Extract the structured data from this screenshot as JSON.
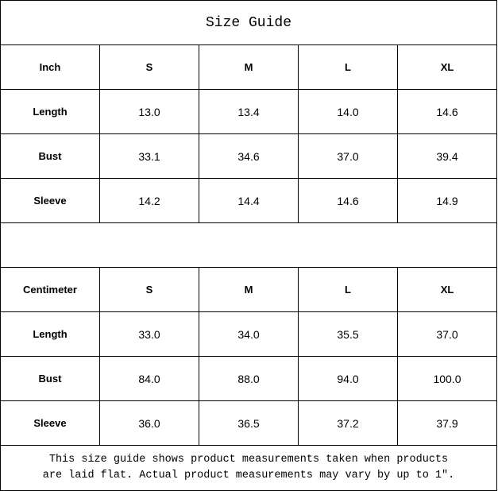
{
  "title": "Size Guide",
  "sizes": [
    "S",
    "M",
    "L",
    "XL"
  ],
  "inch": {
    "header": "Inch",
    "rows": [
      {
        "label": "Length",
        "values": [
          "13.0",
          "13.4",
          "14.0",
          "14.6"
        ]
      },
      {
        "label": "Bust",
        "values": [
          "33.1",
          "34.6",
          "37.0",
          "39.4"
        ]
      },
      {
        "label": "Sleeve",
        "values": [
          "14.2",
          "14.4",
          "14.6",
          "14.9"
        ]
      }
    ]
  },
  "cm": {
    "header": "Centimeter",
    "rows": [
      {
        "label": "Length",
        "values": [
          "33.0",
          "34.0",
          "35.5",
          "37.0"
        ]
      },
      {
        "label": "Bust",
        "values": [
          "84.0",
          "88.0",
          "94.0",
          "100.0"
        ]
      },
      {
        "label": "Sleeve",
        "values": [
          "36.0",
          "36.5",
          "37.2",
          "37.9"
        ]
      }
    ]
  },
  "footer": {
    "line1": "This size guide shows product measurements taken when products",
    "line2": "are laid flat. Actual product measurements may vary by up to 1″."
  }
}
